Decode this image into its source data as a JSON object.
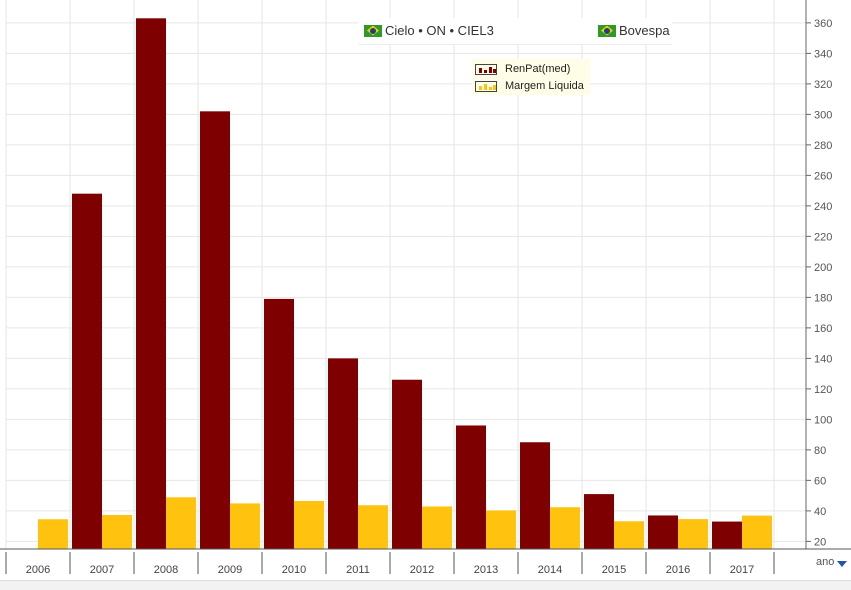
{
  "header": {
    "asset_label": "Cielo • ON • CIEL3",
    "index_label": "Bovespa"
  },
  "axis": {
    "category_axis_name": "ano"
  },
  "colors": {
    "renpat": "#7f0000",
    "margem": "#ffc20e",
    "grid": "#e6e6e6",
    "legend_bg": "#fffde8"
  },
  "chart_data": {
    "type": "bar",
    "categories": [
      "2006",
      "2007",
      "2008",
      "2009",
      "2010",
      "2011",
      "2012",
      "2013",
      "2014",
      "2015",
      "2016",
      "2017"
    ],
    "series": [
      {
        "name": "RenPat(med)",
        "values": [
          null,
          248,
          363,
          302,
          179,
          140,
          126,
          96,
          85,
          51,
          37,
          33
        ]
      },
      {
        "name": "Margem Liquida",
        "values": [
          34.5,
          37.3,
          48.9,
          44.9,
          46.5,
          43.7,
          42.9,
          40.3,
          42.4,
          33.2,
          34.6,
          36.9
        ]
      }
    ],
    "ylim": [
      15,
      375
    ],
    "yticks": [
      20,
      40,
      60,
      80,
      100,
      120,
      140,
      160,
      180,
      200,
      220,
      240,
      260,
      280,
      300,
      320,
      340,
      360
    ],
    "ytick_labels": [
      "20",
      "40",
      "60",
      "80",
      "100",
      "120",
      "140",
      "160",
      "180",
      "200",
      "220",
      "240",
      "260",
      "280",
      "300",
      "320",
      "340",
      "360"
    ],
    "grid": true,
    "legend": "top-center",
    "title": "",
    "xlabel": "ano",
    "ylabel": ""
  }
}
